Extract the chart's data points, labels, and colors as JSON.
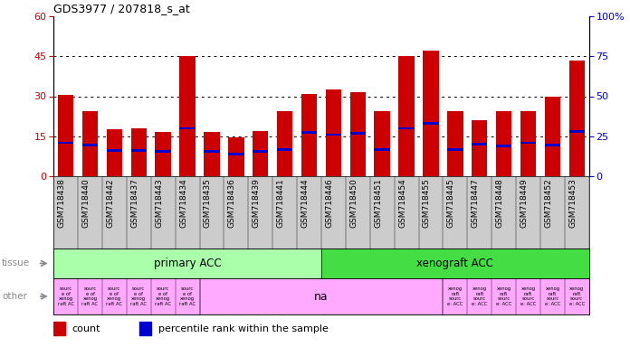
{
  "title": "GDS3977 / 207818_s_at",
  "samples": [
    "GSM718438",
    "GSM718440",
    "GSM718442",
    "GSM718437",
    "GSM718443",
    "GSM718434",
    "GSM718435",
    "GSM718436",
    "GSM718439",
    "GSM718441",
    "GSM718444",
    "GSM718446",
    "GSM718450",
    "GSM718451",
    "GSM718454",
    "GSM718455",
    "GSM718445",
    "GSM718447",
    "GSM718448",
    "GSM718449",
    "GSM718452",
    "GSM718453"
  ],
  "counts": [
    30.5,
    24.5,
    17.5,
    18.0,
    16.5,
    45.0,
    16.5,
    14.5,
    17.0,
    24.5,
    31.0,
    32.5,
    31.5,
    24.5,
    45.0,
    47.0,
    24.5,
    21.0,
    24.5,
    24.5,
    30.0,
    43.5
  ],
  "percentiles": [
    21.0,
    19.5,
    16.0,
    16.0,
    15.5,
    30.0,
    15.5,
    14.0,
    15.5,
    16.5,
    27.5,
    26.0,
    27.0,
    16.5,
    30.0,
    33.0,
    16.5,
    20.0,
    19.0,
    21.0,
    19.5,
    28.0
  ],
  "ylim_left": [
    0,
    60
  ],
  "ylim_right": [
    0,
    100
  ],
  "yticks_left": [
    0,
    15,
    30,
    45,
    60
  ],
  "yticks_right": [
    0,
    25,
    50,
    75,
    100
  ],
  "ytick_labels_right": [
    "0",
    "25",
    "50",
    "75",
    "100%"
  ],
  "bar_color": "#cc0000",
  "percentile_color": "#0000cc",
  "tissue_split": 11,
  "tissue_primary_color": "#aaffaa",
  "tissue_xenograft_color": "#44dd44",
  "tissue_primary_label": "primary ACC",
  "tissue_xenograft_label": "xenograft ACC",
  "other_color": "#ffaaff",
  "other_na_label": "na",
  "legend_count_label": "count",
  "legend_percentile_label": "percentile rank within the sample",
  "background_color": "#ffffff",
  "xtick_bg_color": "#cccccc",
  "left_label_color": "#888888"
}
